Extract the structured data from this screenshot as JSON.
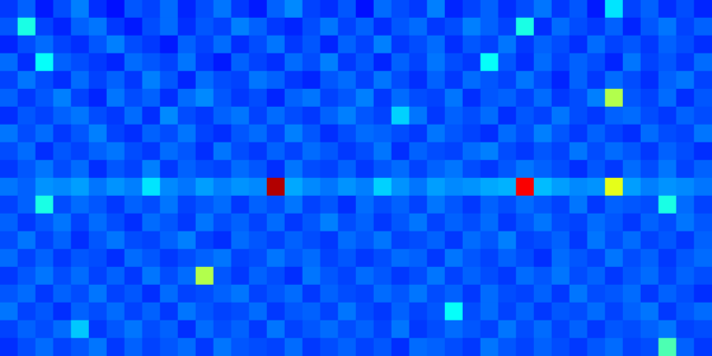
{
  "chart_data": {
    "type": "heatmap",
    "tick_labels": false,
    "zlim": [
      0,
      100
    ],
    "cells": [
      [
        18,
        22,
        15,
        20,
        25,
        17,
        14,
        21,
        19,
        23,
        16,
        20,
        24,
        18,
        15,
        22,
        26,
        19,
        17,
        21,
        14,
        23,
        20,
        18,
        25,
        16,
        19,
        22,
        17,
        20,
        24,
        18,
        21,
        15,
        35,
        19,
        22,
        17,
        20,
        16
      ],
      [
        21,
        40,
        19,
        16,
        22,
        24,
        18,
        15,
        20,
        23,
        17,
        21,
        19,
        25,
        22,
        18,
        16,
        20,
        24,
        19,
        22,
        17,
        21,
        23,
        18,
        20,
        25,
        22,
        19,
        40,
        17,
        23,
        20,
        18,
        22,
        16,
        21,
        24,
        19,
        22
      ],
      [
        16,
        20,
        23,
        19,
        17,
        21,
        25,
        20,
        18,
        15,
        22,
        19,
        23,
        17,
        20,
        24,
        18,
        21,
        16,
        22,
        19,
        25,
        18,
        20,
        23,
        17,
        21,
        19,
        24,
        18,
        22,
        20,
        17,
        23,
        19,
        21,
        18,
        22,
        20,
        17
      ],
      [
        23,
        17,
        38,
        22,
        20,
        18,
        16,
        23,
        21,
        19,
        24,
        18,
        15,
        22,
        19,
        17,
        23,
        20,
        25,
        18,
        21,
        16,
        22,
        19,
        24,
        20,
        18,
        38,
        21,
        17,
        23,
        19,
        22,
        20,
        16,
        24,
        19,
        21,
        18,
        23
      ],
      [
        19,
        24,
        20,
        17,
        23,
        19,
        22,
        18,
        25,
        21,
        16,
        23,
        20,
        19,
        24,
        22,
        18,
        16,
        21,
        23,
        19,
        24,
        20,
        17,
        22,
        18,
        23,
        21,
        19,
        24,
        20,
        16,
        22,
        18,
        23,
        20,
        17,
        22,
        24,
        19
      ],
      [
        22,
        18,
        21,
        25,
        19,
        16,
        24,
        20,
        22,
        17,
        23,
        26,
        21,
        18,
        20,
        16,
        22,
        24,
        19,
        21,
        25,
        18,
        23,
        20,
        19,
        24,
        17,
        21,
        22,
        19,
        23,
        18,
        20,
        25,
        55,
        21,
        19,
        23,
        17,
        21
      ],
      [
        17,
        21,
        19,
        22,
        24,
        20,
        18,
        23,
        17,
        26,
        20,
        18,
        22,
        24,
        19,
        23,
        20,
        18,
        22,
        25,
        21,
        19,
        33,
        24,
        18,
        22,
        20,
        23,
        17,
        21,
        19,
        24,
        20,
        18,
        22,
        23,
        20,
        18,
        22,
        20
      ],
      [
        24,
        20,
        23,
        18,
        21,
        25,
        19,
        17,
        22,
        20,
        24,
        19,
        17,
        21,
        23,
        19,
        25,
        21,
        17,
        20,
        23,
        22,
        20,
        18,
        24,
        21,
        19,
        17,
        23,
        20,
        25,
        21,
        18,
        22,
        19,
        17,
        23,
        20,
        19,
        24
      ],
      [
        20,
        23,
        17,
        21,
        19,
        22,
        24,
        20,
        18,
        23,
        21,
        17,
        24,
        20,
        18,
        22,
        19,
        23,
        21,
        18,
        20,
        24,
        17,
        22,
        20,
        19,
        23,
        25,
        20,
        18,
        21,
        19,
        24,
        20,
        23,
        21,
        18,
        22,
        20,
        17
      ],
      [
        18,
        21,
        24,
        20,
        23,
        17,
        21,
        19,
        25,
        18,
        22,
        20,
        19,
        23,
        21,
        17,
        24,
        20,
        19,
        22,
        18,
        21,
        23,
        19,
        22,
        24,
        20,
        18,
        21,
        24,
        22,
        20,
        17,
        21,
        18,
        23,
        20,
        24,
        19,
        22
      ],
      [
        24,
        22,
        27,
        26,
        28,
        24,
        27,
        25,
        35,
        26,
        24,
        28,
        25,
        27,
        26,
        95,
        29,
        26,
        24,
        27,
        25,
        33,
        27,
        24,
        28,
        26,
        27,
        29,
        30,
        88,
        31,
        28,
        26,
        27,
        60,
        28,
        25,
        27,
        26,
        24
      ],
      [
        19,
        22,
        40,
        20,
        23,
        21,
        18,
        22,
        20,
        24,
        19,
        21,
        23,
        18,
        22,
        20,
        24,
        19,
        21,
        17,
        23,
        20,
        22,
        19,
        24,
        21,
        18,
        22,
        20,
        23,
        21,
        19,
        24,
        18,
        22,
        21,
        20,
        40,
        23,
        19
      ],
      [
        22,
        18,
        21,
        24,
        19,
        23,
        20,
        17,
        23,
        21,
        18,
        24,
        20,
        22,
        19,
        23,
        18,
        21,
        25,
        20,
        22,
        18,
        21,
        24,
        19,
        22,
        20,
        23,
        18,
        21,
        24,
        20,
        19,
        23,
        21,
        18,
        22,
        20,
        24,
        21
      ],
      [
        20,
        24,
        19,
        22,
        17,
        21,
        24,
        20,
        19,
        22,
        25,
        19,
        17,
        23,
        21,
        19,
        22,
        20,
        18,
        23,
        21,
        24,
        19,
        20,
        22,
        18,
        23,
        21,
        25,
        19,
        20,
        22,
        18,
        24,
        20,
        23,
        19,
        21,
        18,
        22
      ],
      [
        23,
        19,
        22,
        18,
        21,
        20,
        17,
        23,
        21,
        18,
        20,
        22,
        24,
        19,
        20,
        24,
        21,
        23,
        19,
        21,
        18,
        20,
        23,
        22,
        18,
        24,
        21,
        19,
        22,
        20,
        17,
        23,
        21,
        19,
        24,
        20,
        22,
        18,
        21,
        23
      ],
      [
        18,
        21,
        24,
        20,
        23,
        19,
        22,
        18,
        24,
        20,
        23,
        55,
        21,
        18,
        22,
        20,
        17,
        24,
        21,
        19,
        23,
        21,
        18,
        20,
        24,
        19,
        22,
        20,
        18,
        23,
        21,
        24,
        20,
        22,
        18,
        21,
        23,
        19,
        22,
        20
      ],
      [
        21,
        23,
        18,
        22,
        20,
        24,
        19,
        21,
        17,
        23,
        19,
        20,
        22,
        24,
        19,
        21,
        23,
        18,
        22,
        20,
        19,
        23,
        21,
        24,
        20,
        22,
        18,
        23,
        20,
        19,
        22,
        18,
        24,
        20,
        21,
        23,
        18,
        22,
        20,
        17
      ],
      [
        24,
        19,
        21,
        17,
        22,
        20,
        23,
        19,
        22,
        18,
        24,
        21,
        19,
        20,
        23,
        18,
        21,
        22,
        19,
        24,
        20,
        18,
        22,
        19,
        21,
        38,
        20,
        23,
        19,
        22,
        18,
        21,
        20,
        23,
        19,
        22,
        24,
        18,
        21,
        23
      ],
      [
        19,
        22,
        20,
        23,
        32,
        18,
        21,
        24,
        20,
        22,
        17,
        23,
        20,
        22,
        18,
        24,
        19,
        21,
        23,
        20,
        22,
        19,
        24,
        18,
        20,
        23,
        21,
        19,
        24,
        20,
        23,
        19,
        22,
        18,
        21,
        20,
        22,
        24,
        19,
        20
      ],
      [
        17,
        20,
        23,
        19,
        21,
        24,
        18,
        22,
        19,
        21,
        23,
        18,
        24,
        21,
        20,
        19,
        23,
        18,
        20,
        22,
        19,
        21,
        17,
        23,
        22,
        20,
        18,
        24,
        21,
        19,
        22,
        20,
        18,
        21,
        23,
        19,
        20,
        45,
        22,
        18
      ]
    ]
  }
}
